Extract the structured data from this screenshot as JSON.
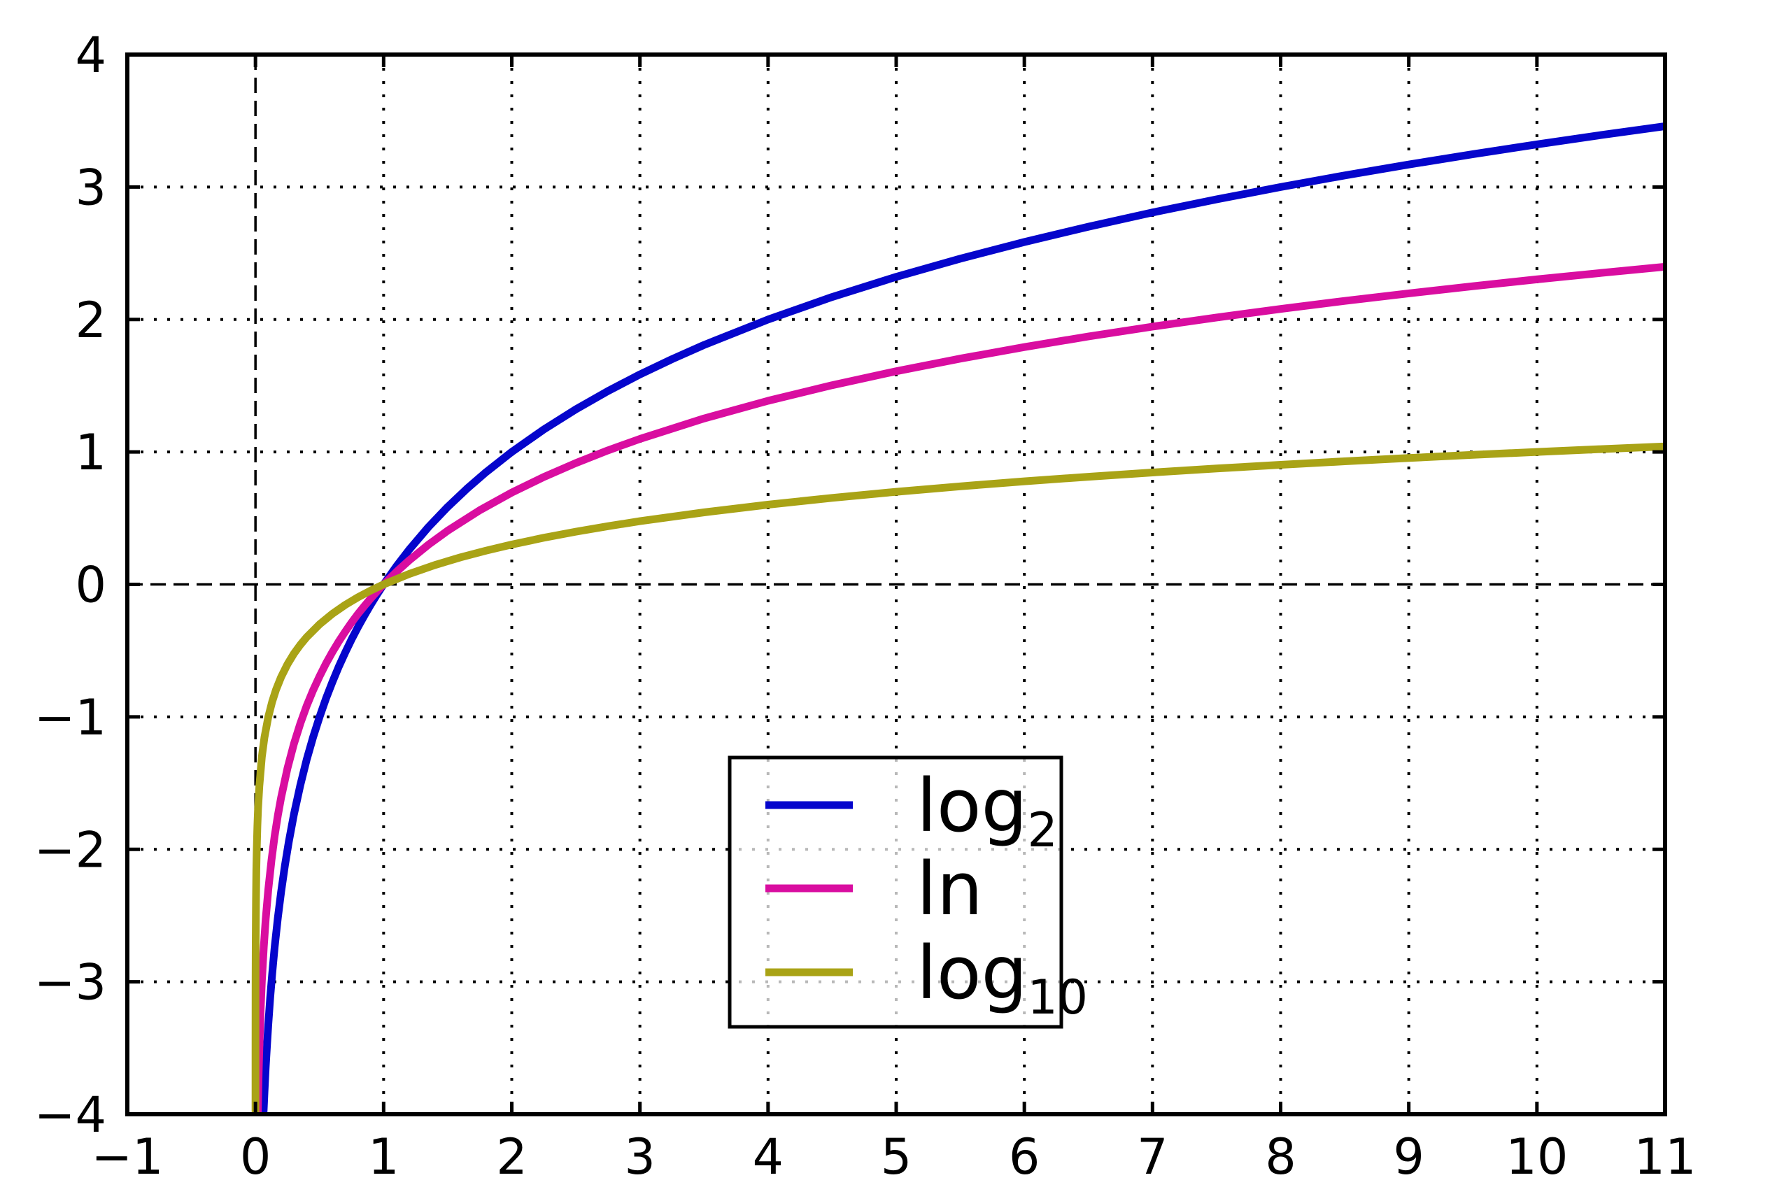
{
  "figure": {
    "background": "#ffffff",
    "text_color": "#000000",
    "frame_color": "#000000"
  },
  "chart_data": {
    "type": "line",
    "title": "",
    "xlabel": "",
    "ylabel": "",
    "xlim": [
      -1,
      11
    ],
    "ylim": [
      -4,
      4
    ],
    "x_ticks": [
      -1,
      0,
      1,
      2,
      3,
      4,
      5,
      6,
      7,
      8,
      9,
      10,
      11
    ],
    "x_tick_labels": [
      "−1",
      "0",
      "1",
      "2",
      "3",
      "4",
      "5",
      "6",
      "7",
      "8",
      "9",
      "10",
      "11"
    ],
    "y_ticks": [
      -4,
      -3,
      -2,
      -1,
      0,
      1,
      2,
      3,
      4
    ],
    "y_tick_labels": [
      "−4",
      "−3",
      "−2",
      "−1",
      "0",
      "1",
      "2",
      "3",
      "4"
    ],
    "grid": {
      "style": "dotted",
      "color": "#000000",
      "x_lines": [
        1,
        2,
        3,
        4,
        5,
        6,
        7,
        8,
        9,
        10
      ],
      "y_lines": [
        -3,
        -2,
        -1,
        1,
        2,
        3
      ]
    },
    "reference_lines": [
      {
        "axis": "x",
        "value": 0,
        "style": "dashed",
        "color": "#000000"
      },
      {
        "axis": "y",
        "value": 0,
        "style": "dashed",
        "color": "#000000"
      }
    ],
    "legend": {
      "position": "lower-center",
      "background": "#ffffff",
      "background_opacity": 0.72,
      "border_color": "#000000",
      "entries": [
        {
          "label_base": "log",
          "label_sub": "2"
        },
        {
          "label_base": "ln",
          "label_sub": ""
        },
        {
          "label_base": "log",
          "label_sub": "10"
        }
      ]
    },
    "series": [
      {
        "name": "log2",
        "label_base": "log",
        "label_sub": "2",
        "color": "#0505cc",
        "points": [
          [
            0.0625,
            -4
          ],
          [
            0.07,
            -3.8365
          ],
          [
            0.08,
            -3.6439
          ],
          [
            0.09,
            -3.4739
          ],
          [
            0.1,
            -3.3219
          ],
          [
            0.115,
            -3.1203
          ],
          [
            0.13,
            -2.9434
          ],
          [
            0.15,
            -2.737
          ],
          [
            0.175,
            -2.5146
          ],
          [
            0.2,
            -2.3219
          ],
          [
            0.23,
            -2.1203
          ],
          [
            0.26,
            -1.9434
          ],
          [
            0.3,
            -1.737
          ],
          [
            0.35,
            -1.5146
          ],
          [
            0.4,
            -1.3219
          ],
          [
            0.45,
            -1.152
          ],
          [
            0.5,
            -1
          ],
          [
            0.55,
            -0.8625
          ],
          [
            0.6,
            -0.737
          ],
          [
            0.65,
            -0.6215
          ],
          [
            0.7,
            -0.5146
          ],
          [
            0.75,
            -0.415
          ],
          [
            0.8,
            -0.3219
          ],
          [
            0.85,
            -0.2345
          ],
          [
            0.9,
            -0.152
          ],
          [
            0.95,
            -0.074
          ],
          [
            1,
            0
          ],
          [
            1.1,
            0.1375
          ],
          [
            1.2,
            0.263
          ],
          [
            1.35,
            0.4329
          ],
          [
            1.5,
            0.585
          ],
          [
            1.65,
            0.7224
          ],
          [
            1.8,
            0.848
          ],
          [
            2,
            1
          ],
          [
            2.25,
            1.1699
          ],
          [
            2.5,
            1.3219
          ],
          [
            2.75,
            1.4594
          ],
          [
            3,
            1.585
          ],
          [
            3.25,
            1.7004
          ],
          [
            3.5,
            1.8074
          ],
          [
            4,
            2
          ],
          [
            4.5,
            2.1699
          ],
          [
            5,
            2.3219
          ],
          [
            5.5,
            2.4594
          ],
          [
            6,
            2.585
          ],
          [
            6.5,
            2.7004
          ],
          [
            7,
            2.8074
          ],
          [
            7.5,
            2.9069
          ],
          [
            8,
            3
          ],
          [
            8.5,
            3.0875
          ],
          [
            9,
            3.1699
          ],
          [
            9.5,
            3.2479
          ],
          [
            10,
            3.3219
          ],
          [
            10.5,
            3.3923
          ],
          [
            11,
            3.4594
          ]
        ]
      },
      {
        "name": "ln",
        "label_base": "ln",
        "label_sub": "",
        "color": "#d90da0",
        "points": [
          [
            0.0183,
            -4
          ],
          [
            0.02,
            -3.912
          ],
          [
            0.025,
            -3.6889
          ],
          [
            0.03,
            -3.5066
          ],
          [
            0.04,
            -3.2189
          ],
          [
            0.05,
            -2.9957
          ],
          [
            0.065,
            -2.7334
          ],
          [
            0.08,
            -2.5257
          ],
          [
            0.1,
            -2.3026
          ],
          [
            0.125,
            -2.0794
          ],
          [
            0.15,
            -1.8971
          ],
          [
            0.175,
            -1.743
          ],
          [
            0.2,
            -1.6094
          ],
          [
            0.25,
            -1.3863
          ],
          [
            0.3,
            -1.204
          ],
          [
            0.35,
            -1.0498
          ],
          [
            0.4,
            -0.9163
          ],
          [
            0.45,
            -0.7985
          ],
          [
            0.5,
            -0.6931
          ],
          [
            0.55,
            -0.5978
          ],
          [
            0.6,
            -0.5108
          ],
          [
            0.65,
            -0.4308
          ],
          [
            0.7,
            -0.3567
          ],
          [
            0.75,
            -0.2877
          ],
          [
            0.8,
            -0.2231
          ],
          [
            0.85,
            -0.1625
          ],
          [
            0.9,
            -0.1054
          ],
          [
            0.95,
            -0.0513
          ],
          [
            1,
            0
          ],
          [
            1.1,
            0.0953
          ],
          [
            1.2,
            0.1823
          ],
          [
            1.35,
            0.3001
          ],
          [
            1.5,
            0.4055
          ],
          [
            1.75,
            0.5596
          ],
          [
            2,
            0.6931
          ],
          [
            2.25,
            0.8109
          ],
          [
            2.5,
            0.9163
          ],
          [
            2.75,
            1.0116
          ],
          [
            3,
            1.0986
          ],
          [
            3.5,
            1.2528
          ],
          [
            4,
            1.3863
          ],
          [
            4.5,
            1.5041
          ],
          [
            5,
            1.6094
          ],
          [
            5.5,
            1.7047
          ],
          [
            6,
            1.7918
          ],
          [
            6.5,
            1.8718
          ],
          [
            7,
            1.9459
          ],
          [
            7.5,
            2.0149
          ],
          [
            8,
            2.0794
          ],
          [
            8.5,
            2.1401
          ],
          [
            9,
            2.1972
          ],
          [
            9.5,
            2.2513
          ],
          [
            10,
            2.3026
          ],
          [
            10.5,
            2.3514
          ],
          [
            11,
            2.3979
          ]
        ]
      },
      {
        "name": "log10",
        "label_base": "log",
        "label_sub": "10",
        "color": "#a9a316",
        "points": [
          [
            0.0001,
            -4
          ],
          [
            0.0003,
            -3.5229
          ],
          [
            0.001,
            -3
          ],
          [
            0.002,
            -2.699
          ],
          [
            0.004,
            -2.3979
          ],
          [
            0.007,
            -2.1549
          ],
          [
            0.01,
            -2
          ],
          [
            0.015,
            -1.8239
          ],
          [
            0.02,
            -1.699
          ],
          [
            0.03,
            -1.5229
          ],
          [
            0.05,
            -1.301
          ],
          [
            0.07,
            -1.1549
          ],
          [
            0.1,
            -1
          ],
          [
            0.13,
            -0.8861
          ],
          [
            0.16,
            -0.7959
          ],
          [
            0.2,
            -0.699
          ],
          [
            0.25,
            -0.6021
          ],
          [
            0.3,
            -0.5229
          ],
          [
            0.35,
            -0.4559
          ],
          [
            0.4,
            -0.3979
          ],
          [
            0.5,
            -0.301
          ],
          [
            0.6,
            -0.2218
          ],
          [
            0.7,
            -0.1549
          ],
          [
            0.8,
            -0.0969
          ],
          [
            0.9,
            -0.0458
          ],
          [
            1,
            0
          ],
          [
            1.2,
            0.0792
          ],
          [
            1.4,
            0.1461
          ],
          [
            1.6,
            0.2041
          ],
          [
            1.8,
            0.2553
          ],
          [
            2,
            0.301
          ],
          [
            2.25,
            0.3522
          ],
          [
            2.5,
            0.3979
          ],
          [
            2.75,
            0.4393
          ],
          [
            3,
            0.4771
          ],
          [
            3.5,
            0.5441
          ],
          [
            4,
            0.6021
          ],
          [
            4.5,
            0.6532
          ],
          [
            5,
            0.699
          ],
          [
            5.5,
            0.7404
          ],
          [
            6,
            0.7782
          ],
          [
            6.5,
            0.8129
          ],
          [
            7,
            0.8451
          ],
          [
            7.5,
            0.8751
          ],
          [
            8,
            0.9031
          ],
          [
            8.5,
            0.9294
          ],
          [
            9,
            0.9542
          ],
          [
            9.5,
            0.9777
          ],
          [
            10,
            1
          ],
          [
            10.5,
            1.0212
          ],
          [
            11,
            1.0414
          ]
        ]
      }
    ]
  }
}
